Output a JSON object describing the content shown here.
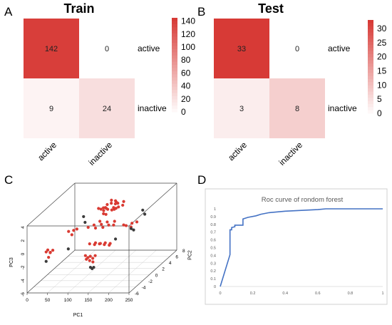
{
  "panels": {
    "A": "A",
    "B": "B",
    "C": "C",
    "D": "D"
  },
  "chart_data": [
    {
      "panel": "A",
      "type": "heatmap",
      "title": "Train",
      "rows": [
        "active",
        "inactive"
      ],
      "cols": [
        "active",
        "inactive"
      ],
      "values": [
        [
          142,
          0
        ],
        [
          9,
          24
        ]
      ],
      "colorbar": {
        "ticks": [
          0,
          20,
          40,
          60,
          80,
          100,
          120,
          140
        ],
        "range": [
          0,
          145
        ],
        "low_color": "#ffffff",
        "high_color": "#d73a36"
      }
    },
    {
      "panel": "B",
      "type": "heatmap",
      "title": "Test",
      "rows": [
        "active",
        "inactive"
      ],
      "cols": [
        "active",
        "inactive"
      ],
      "values": [
        [
          33,
          0
        ],
        [
          3,
          8
        ]
      ],
      "colorbar": {
        "ticks": [
          0,
          5,
          10,
          15,
          20,
          25,
          30
        ],
        "range": [
          0,
          33
        ],
        "low_color": "#ffffff",
        "high_color": "#d73a36"
      }
    },
    {
      "panel": "C",
      "type": "scatter",
      "title": "",
      "xlabel": "PC1",
      "ylabel": "PC2",
      "zlabel": "PC3",
      "x_ticks": [
        0,
        50,
        100,
        150,
        200,
        250
      ],
      "y_ticks": [
        -6,
        -4,
        -2,
        0,
        2,
        4,
        6,
        8
      ],
      "z_ticks": [
        -6,
        -4,
        -2,
        0,
        2,
        4
      ],
      "xlim": [
        0,
        250
      ],
      "ylim": [
        -6,
        8
      ],
      "zlim": [
        -6,
        4
      ],
      "series": [
        {
          "color": "#d93a32",
          "points": [
            [
              138,
              1,
              4.0
            ],
            [
              142,
              0,
              4.0
            ],
            [
              146,
              -1,
              4.0
            ],
            [
              150,
              2,
              4.1
            ],
            [
              154,
              -2,
              4.0
            ],
            [
              158,
              1,
              4.1
            ],
            [
              162,
              0,
              4.0
            ],
            [
              166,
              -1,
              4.1
            ],
            [
              170,
              2,
              4.0
            ],
            [
              174,
              0,
              4.1
            ],
            [
              140,
              2,
              4.2
            ],
            [
              148,
              1,
              4.2
            ],
            [
              156,
              -1,
              4.2
            ],
            [
              164,
              1,
              4.2
            ],
            [
              172,
              -1,
              4.2
            ],
            [
              144,
              0,
              3.9
            ],
            [
              152,
              2,
              3.9
            ],
            [
              160,
              -2,
              3.9
            ],
            [
              168,
              0,
              3.9
            ],
            [
              176,
              1,
              3.9
            ],
            [
              108,
              -1,
              1.5
            ],
            [
              114,
              0,
              1.4
            ],
            [
              120,
              1,
              1.5
            ],
            [
              126,
              -1,
              1.4
            ],
            [
              132,
              0,
              1.5
            ],
            [
              138,
              1,
              1.4
            ],
            [
              144,
              -1,
              1.5
            ],
            [
              150,
              0,
              1.4
            ],
            [
              156,
              1,
              1.5
            ],
            [
              162,
              0,
              1.4
            ],
            [
              170,
              2,
              0.5
            ],
            [
              176,
              2,
              0.4
            ],
            [
              182,
              3,
              0.3
            ],
            [
              188,
              2,
              0.2
            ],
            [
              194,
              3,
              0.5
            ],
            [
              30,
              -4,
              -0.8
            ],
            [
              34,
              -4,
              -0.5
            ],
            [
              38,
              -3,
              -1.0
            ],
            [
              32,
              -3,
              -1.3
            ],
            [
              36,
              -4,
              -1.6
            ],
            [
              40,
              -4,
              -0.9
            ],
            [
              60,
              -1,
              0.9
            ],
            [
              64,
              0,
              0.6
            ],
            [
              68,
              -1,
              0.4
            ],
            [
              72,
              0,
              0.8
            ],
            [
              120,
              -2,
              -0.5
            ],
            [
              126,
              -1,
              -0.8
            ],
            [
              132,
              -2,
              -0.6
            ],
            [
              138,
              -1,
              -0.9
            ],
            [
              144,
              -2,
              -0.5
            ],
            [
              150,
              -1,
              -0.8
            ],
            [
              156,
              -2,
              -0.6
            ],
            [
              162,
              -1,
              -0.9
            ],
            [
              168,
              -2,
              -0.7
            ],
            [
              118,
              -3,
              -1.8
            ],
            [
              124,
              -3,
              -2.1
            ],
            [
              130,
              -3,
              -1.9
            ],
            [
              136,
              -3,
              -2.2
            ],
            [
              142,
              -3,
              -1.8
            ],
            [
              112,
              -2,
              -2.8
            ],
            [
              120,
              -2,
              -3.0
            ],
            [
              128,
              -2,
              -3.2
            ],
            [
              100,
              3,
              2.5
            ],
            [
              106,
              3,
              2.4
            ],
            [
              112,
              3,
              2.6
            ]
          ]
        },
        {
          "color": "#3b3b3b",
          "points": [
            [
              80,
              1,
              2.2
            ],
            [
              92,
              0,
              1.8
            ],
            [
              30,
              -4,
              -2.2
            ],
            [
              122,
              -2,
              -4.0
            ],
            [
              126,
              -2,
              -4.2
            ],
            [
              130,
              -2,
              -4.0
            ],
            [
              180,
              3,
              -0.5
            ],
            [
              186,
              3,
              -0.7
            ],
            [
              200,
              4,
              1.8
            ],
            [
              205,
              4,
              1.2
            ],
            [
              150,
              2,
              -1.6
            ],
            [
              76,
              -3,
              -0.8
            ]
          ]
        }
      ]
    },
    {
      "panel": "D",
      "type": "line",
      "title": "Roc curve of rondom forest",
      "xlabel": "",
      "ylabel": "",
      "xlim": [
        0,
        1
      ],
      "ylim": [
        0,
        1
      ],
      "x_ticks": [
        "0",
        "0.2",
        "0.4",
        "0.6",
        "0.8",
        "1"
      ],
      "y_ticks": [
        "0",
        "0.1",
        "0.2",
        "0.3",
        "0.4",
        "0.5",
        "0.6",
        "0.7",
        "0.8",
        "0.9",
        "1"
      ],
      "line_color": "#4472c4",
      "series": [
        {
          "x": [
            0,
            0.06,
            0.06,
            0.07,
            0.07,
            0.09,
            0.09,
            0.12,
            0.14,
            0.14,
            0.17,
            0.22,
            0.25,
            0.3,
            0.4,
            0.5,
            0.6,
            0.65,
            1.0
          ],
          "y": [
            0,
            0.41,
            0.73,
            0.73,
            0.76,
            0.77,
            0.79,
            0.79,
            0.79,
            0.87,
            0.89,
            0.91,
            0.93,
            0.95,
            0.97,
            0.98,
            0.99,
            1.0,
            1.0
          ]
        }
      ]
    }
  ]
}
